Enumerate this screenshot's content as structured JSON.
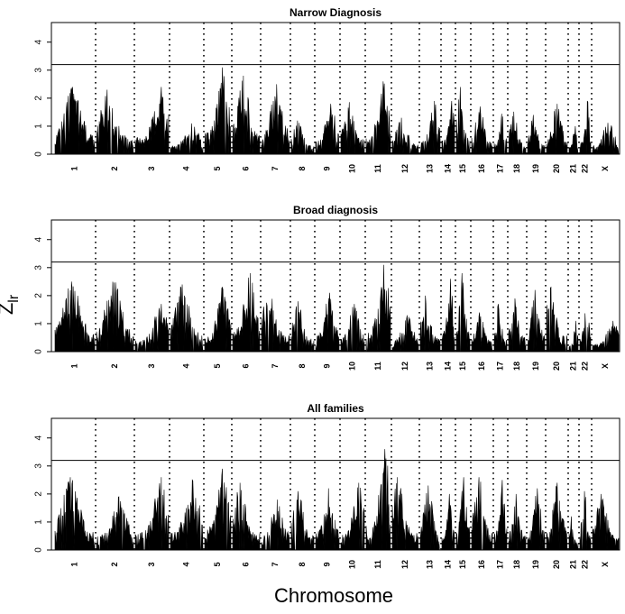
{
  "figure": {
    "ylabel_main": "Z",
    "ylabel_sub": "lr",
    "xlabel": "Chromosome"
  },
  "chart_data": [
    {
      "type": "line",
      "title": "Narrow Diagnosis",
      "ylim": [
        0,
        4.7
      ],
      "yticks": [
        0,
        1,
        2,
        3,
        4
      ],
      "threshold": 3.2,
      "chromosomes": [
        "1",
        "2",
        "3",
        "4",
        "5",
        "6",
        "7",
        "8",
        "9",
        "10",
        "11",
        "12",
        "13",
        "14",
        "15",
        "16",
        "17",
        "18",
        "19",
        "20",
        "21",
        "22",
        "X"
      ],
      "peaks": [
        2.4,
        2.3,
        2.4,
        1.1,
        3.1,
        2.8,
        2.5,
        1.2,
        1.8,
        2.0,
        2.6,
        1.3,
        1.9,
        1.9,
        2.4,
        1.7,
        1.6,
        1.6,
        1.4,
        1.8,
        1.0,
        1.9,
        1.2
      ]
    },
    {
      "type": "line",
      "title": "Broad diagnosis",
      "ylim": [
        0,
        4.7
      ],
      "yticks": [
        0,
        1,
        2,
        3,
        4
      ],
      "threshold": 3.2,
      "chromosomes": [
        "1",
        "2",
        "3",
        "4",
        "5",
        "6",
        "7",
        "8",
        "9",
        "10",
        "11",
        "12",
        "13",
        "14",
        "15",
        "16",
        "17",
        "18",
        "19",
        "20",
        "21",
        "22",
        "X"
      ],
      "peaks": [
        2.5,
        2.6,
        1.7,
        2.4,
        2.3,
        2.8,
        2.4,
        1.8,
        2.1,
        1.7,
        3.1,
        1.3,
        2.0,
        2.6,
        2.8,
        1.4,
        1.7,
        1.9,
        2.2,
        2.3,
        1.1,
        2.0,
        1.1
      ]
    },
    {
      "type": "line",
      "title": "All families",
      "ylim": [
        0,
        4.7
      ],
      "yticks": [
        0,
        1,
        2,
        3,
        4
      ],
      "threshold": 3.2,
      "chromosomes": [
        "1",
        "2",
        "3",
        "4",
        "5",
        "6",
        "7",
        "8",
        "9",
        "10",
        "11",
        "12",
        "13",
        "14",
        "15",
        "16",
        "17",
        "18",
        "19",
        "20",
        "21",
        "22",
        "X"
      ],
      "peaks": [
        2.6,
        1.9,
        2.6,
        2.5,
        2.9,
        2.4,
        1.8,
        2.1,
        2.2,
        2.4,
        3.6,
        2.6,
        2.3,
        2.0,
        2.6,
        2.6,
        2.5,
        2.0,
        2.2,
        2.4,
        1.2,
        2.1,
        2.0
      ]
    }
  ]
}
